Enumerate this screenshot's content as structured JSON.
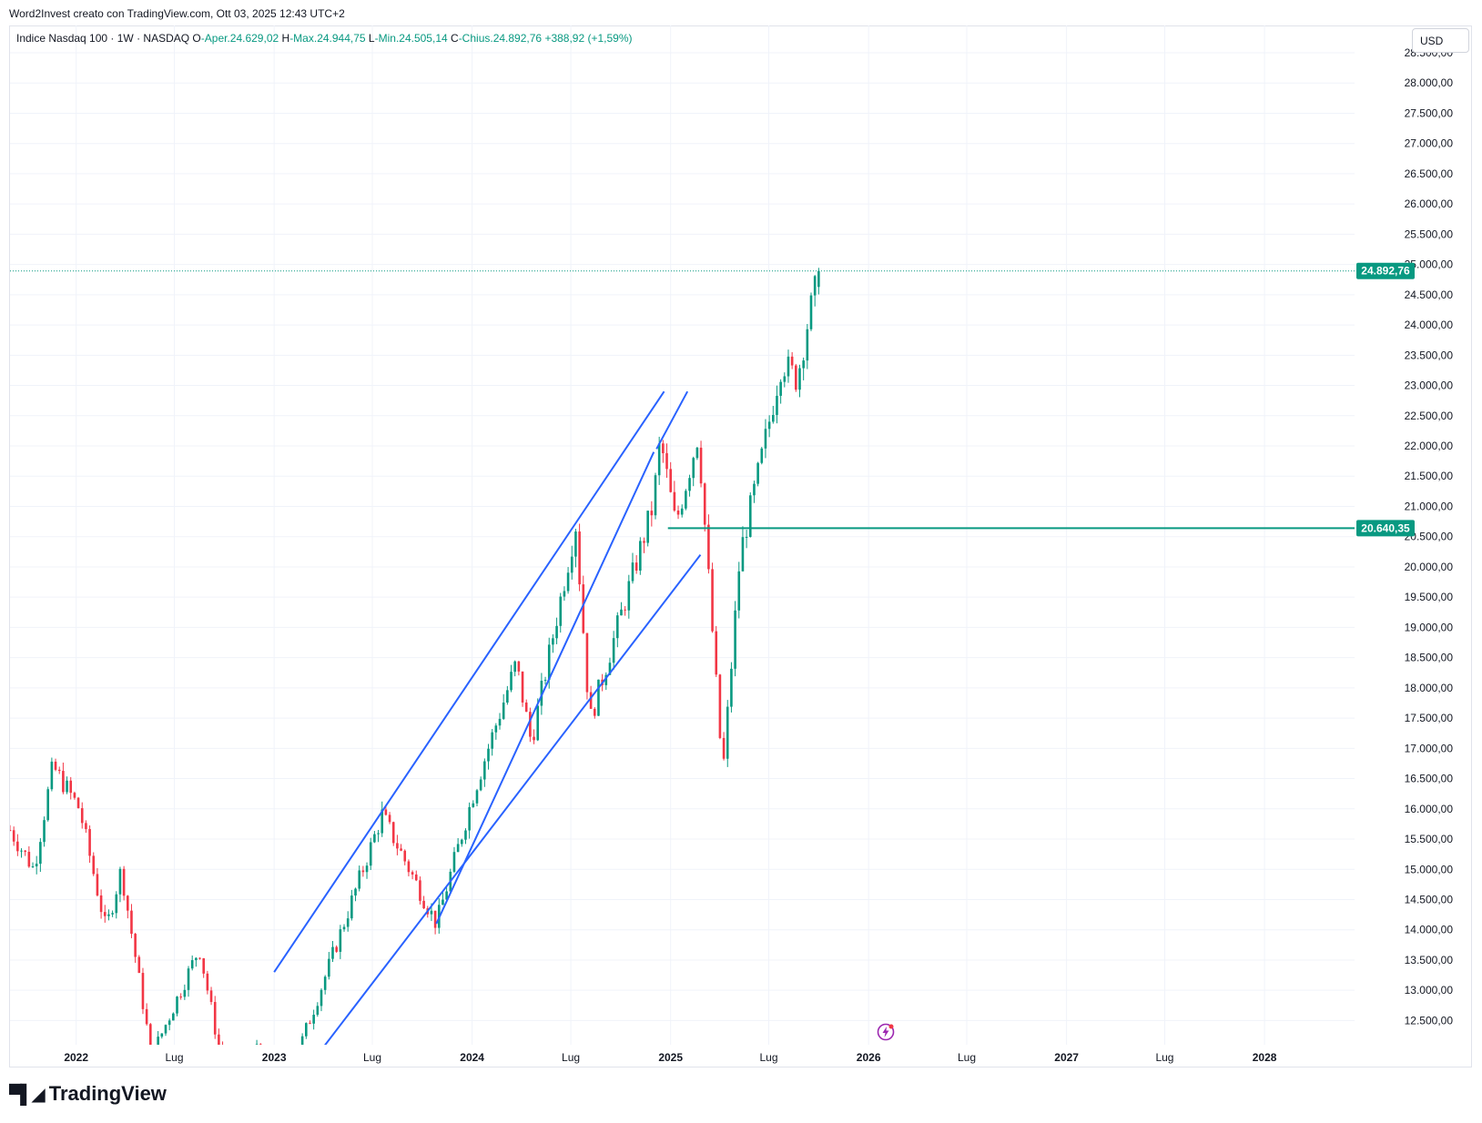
{
  "header": {
    "caption": "Word2Invest creato con TradingView.com, Ott 03, 2025 12:43 UTC+2"
  },
  "legend": {
    "symbol": "Indice Nasdaq 100 · 1W · NASDAQ",
    "o_label": "O",
    "o_value": "-Aper.24.629,02",
    "h_label": "H",
    "h_value": "-Max.24.944,75",
    "l_label": "L",
    "l_value": "-Min.24.505,14",
    "c_label": "C",
    "c_value": "-Chius.24.892,76",
    "change": "+388,92 (+1,59%)"
  },
  "toolbar": {
    "currency": "USD"
  },
  "footer": {
    "brand": "TradingView",
    "logo_icon": "tradingview-logo-icon"
  },
  "colors": {
    "up": "#089981",
    "down": "#f23645",
    "trendline": "#2962ff",
    "grid": "#f0f3fa"
  },
  "chart_data": {
    "type": "candlestick",
    "title": "Indice Nasdaq 100 · 1W · NASDAQ",
    "y_axis": {
      "ylim": [
        12100,
        28500
      ],
      "ticks": [
        12500,
        13000,
        13500,
        14000,
        14500,
        15000,
        15500,
        16000,
        16500,
        17000,
        17500,
        18000,
        18500,
        19000,
        19500,
        20000,
        20500,
        21000,
        21500,
        22000,
        22500,
        23000,
        23500,
        24000,
        24500,
        25000,
        25500,
        26000,
        26500,
        27000,
        27500,
        28000,
        28500
      ],
      "tick_labels": [
        "12.500,00",
        "13.000,00",
        "13.500,00",
        "14.000,00",
        "14.500,00",
        "15.000,00",
        "15.500,00",
        "16.000,00",
        "16.500,00",
        "17.000,00",
        "17.500,00",
        "18.000,00",
        "18.500,00",
        "19.000,00",
        "19.500,00",
        "20.000,00",
        "20.500,00",
        "21.000,00",
        "21.500,00",
        "22.000,00",
        "22.500,00",
        "23.000,00",
        "23.500,00",
        "24.000,00",
        "24.500,00",
        "25.000,00",
        "25.500,00",
        "26.000,00",
        "26.500,00",
        "27.000,00",
        "27.500,00",
        "28.000,00",
        "28.500,00"
      ]
    },
    "x_axis": {
      "labels": [
        "2022",
        "Lug",
        "2023",
        "Lug",
        "2024",
        "Lug",
        "2025",
        "Lug",
        "2026",
        "Lug",
        "2027",
        "Lug",
        "2028"
      ],
      "dates": [
        "2022-01-01",
        "2022-07-01",
        "2023-01-01",
        "2023-07-01",
        "2024-01-01",
        "2024-07-01",
        "2025-01-01",
        "2025-07-01",
        "2026-01-01",
        "2026-07-01",
        "2027-01-01",
        "2027-07-01",
        "2028-01-01"
      ],
      "range": [
        "2021-09-01",
        "2028-06-15"
      ]
    },
    "series": [
      {
        "name": "Indice Nasdaq 100",
        "path_points": [
          [
            "2021-09-01",
            15650
          ],
          [
            "2021-10-15",
            15000
          ],
          [
            "2021-11-19",
            16700
          ],
          [
            "2022-01-07",
            16000
          ],
          [
            "2022-02-25",
            14000
          ],
          [
            "2022-03-25",
            15000
          ],
          [
            "2022-05-20",
            11900
          ],
          [
            "2022-08-16",
            13700
          ],
          [
            "2022-10-14",
            11000
          ],
          [
            "2022-12-01",
            12000
          ],
          [
            "2023-01-06",
            11000
          ],
          [
            "2023-03-31",
            13100
          ],
          [
            "2023-07-19",
            15900
          ],
          [
            "2023-10-27",
            14100
          ],
          [
            "2024-01-05",
            16300
          ],
          [
            "2024-03-22",
            18400
          ],
          [
            "2024-04-19",
            17100
          ],
          [
            "2024-07-10",
            20700
          ],
          [
            "2024-08-05",
            17450
          ],
          [
            "2024-11-29",
            21000
          ],
          [
            "2024-12-13",
            22100
          ],
          [
            "2025-01-10",
            20700
          ],
          [
            "2025-02-21",
            22200
          ],
          [
            "2025-04-07",
            16550
          ],
          [
            "2025-05-09",
            20200
          ],
          [
            "2025-06-13",
            21600
          ],
          [
            "2025-07-25",
            23400
          ],
          [
            "2025-08-22",
            23100
          ],
          [
            "2025-09-12",
            24100
          ],
          [
            "2025-10-03",
            24892.76
          ]
        ]
      }
    ],
    "last_price": {
      "value": 24892.76,
      "label": "24.892,76"
    },
    "horizontal_line": {
      "value": 20640.35,
      "label": "20.640,35",
      "start": "2024-12-27"
    },
    "trendlines": [
      {
        "from": [
          "2023-01-01",
          13300
        ],
        "to": [
          "2024-12-20",
          22900
        ]
      },
      {
        "from": [
          "2023-04-01",
          12050
        ],
        "to": [
          "2025-02-25",
          20200
        ]
      },
      {
        "from": [
          "2023-10-27",
          14100
        ],
        "to": [
          "2024-12-01",
          21900
        ]
      },
      {
        "from": [
          "2024-12-06",
          21950
        ],
        "to": [
          "2025-02-01",
          22900
        ]
      }
    ]
  }
}
